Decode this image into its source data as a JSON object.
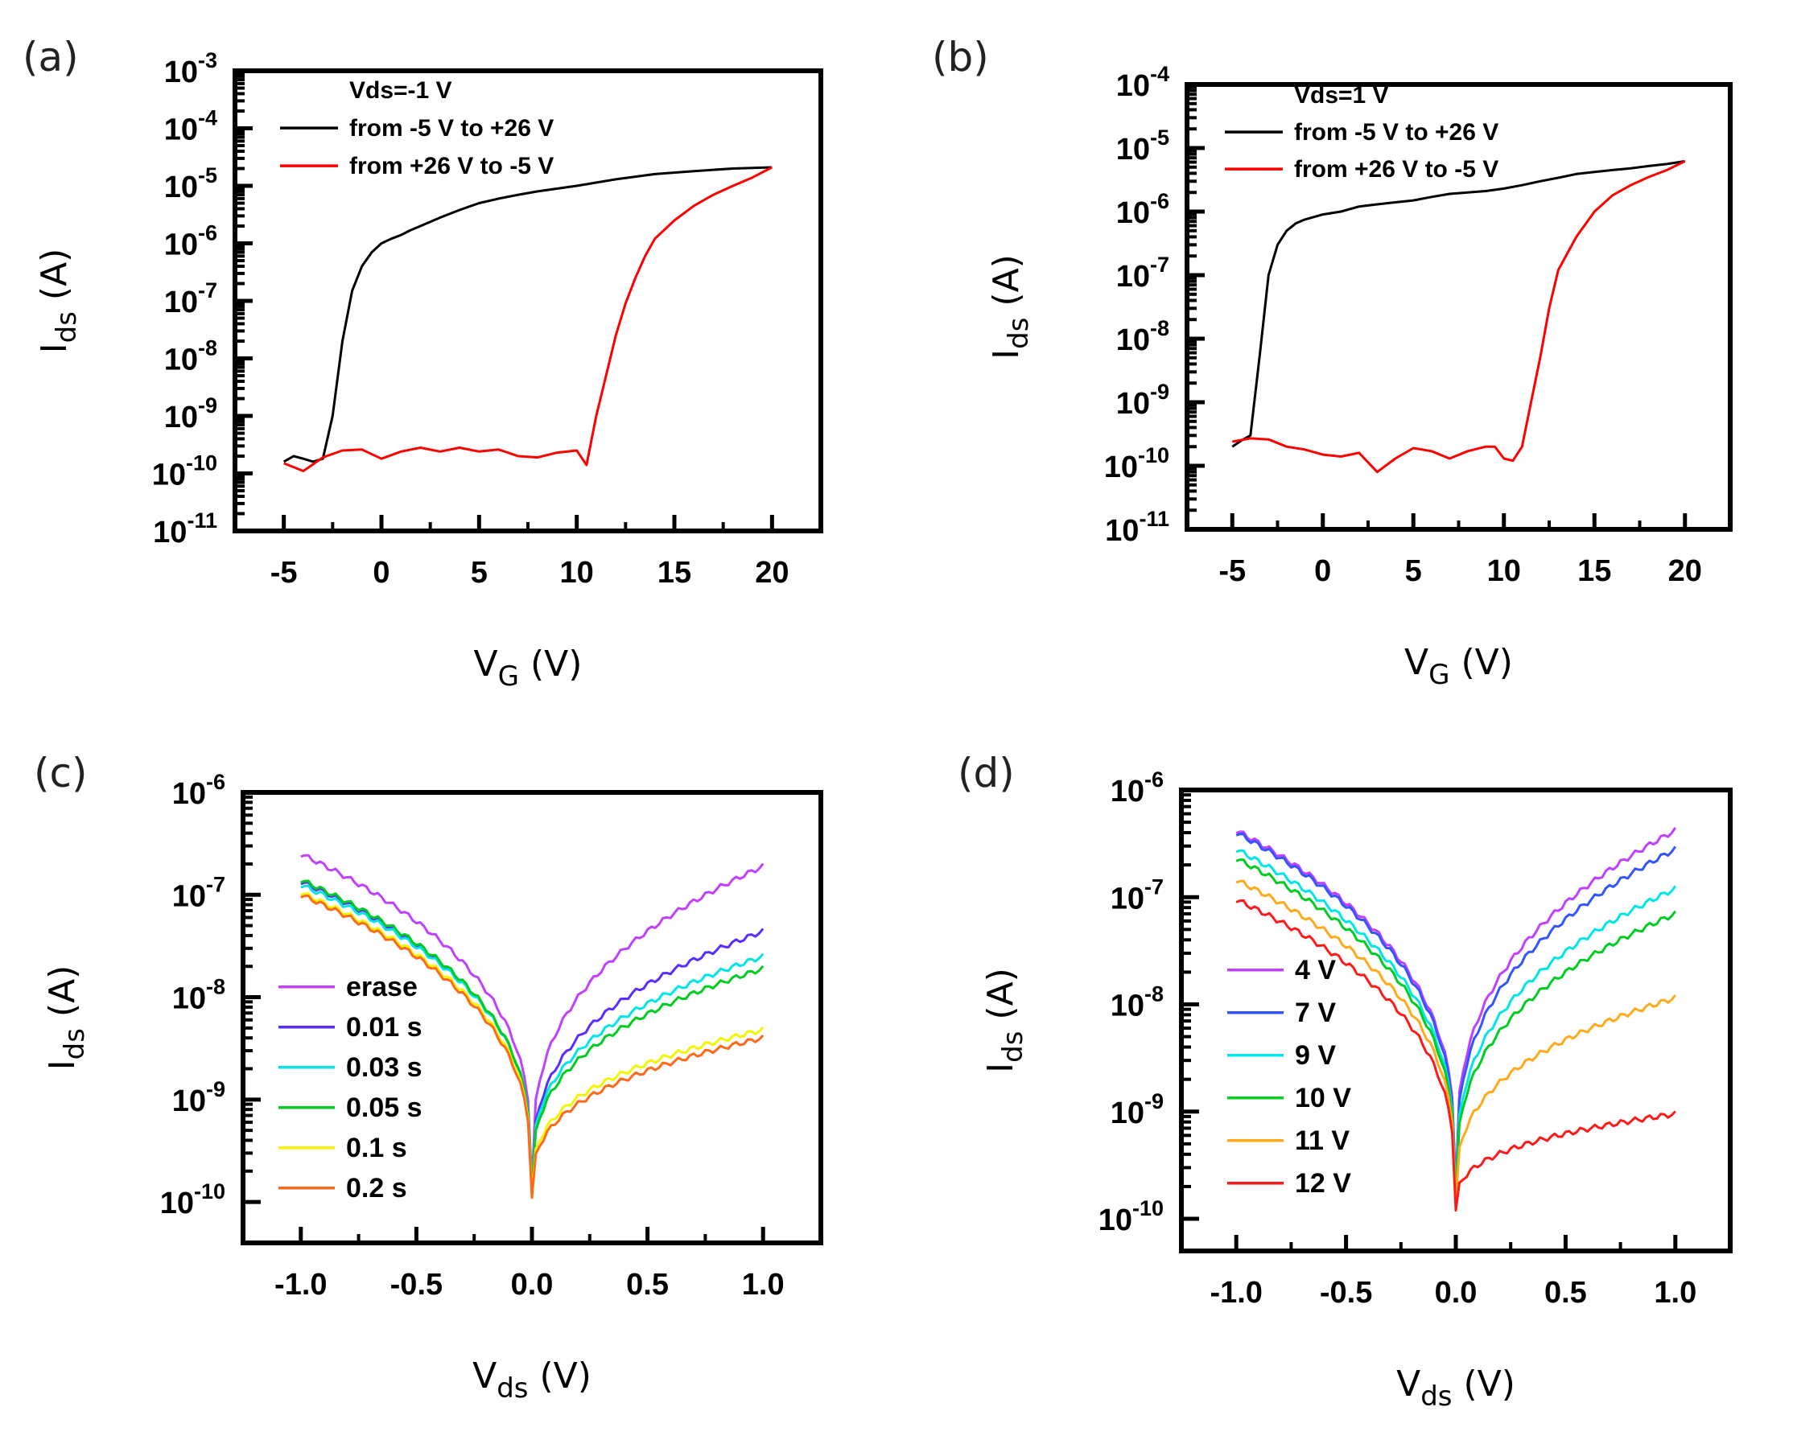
{
  "figure_labels": [
    "(a)",
    "(b)",
    "(c)",
    "(d)"
  ],
  "chart_data": [
    {
      "type": "line",
      "panel": "(a)",
      "annotation": "Vds=-1 V",
      "xlabel": "V",
      "xlabel_sub": "G",
      "xlabel_unit": " (V)",
      "ylabel": "I",
      "ylabel_sub": "ds",
      "ylabel_unit": " (A)",
      "xlim": [
        -7.5,
        22.5
      ],
      "xticks": [
        -5,
        0,
        5,
        10,
        15,
        20
      ],
      "y_scale": "log",
      "ylim_exp": [
        -11,
        -3
      ],
      "ytick_exps": [
        -11,
        -10,
        -9,
        -8,
        -7,
        -6,
        -5,
        -4,
        -3
      ],
      "legend_position": "top-left",
      "series": [
        {
          "name": "from -5 V to +26 V",
          "color": "#000000",
          "x": [
            -5,
            -4.5,
            -4,
            -3.5,
            -3,
            -2.5,
            -2,
            -1.5,
            -1,
            -0.5,
            0,
            0.5,
            1,
            1.5,
            2,
            3,
            4,
            5,
            6,
            7,
            8,
            10,
            12,
            14,
            16,
            18,
            20
          ],
          "y": [
            1.6e-10,
            2e-10,
            1.8e-10,
            1.6e-10,
            1.8e-10,
            1e-09,
            2e-08,
            1.5e-07,
            4e-07,
            7e-07,
            1e-06,
            1.2e-06,
            1.4e-06,
            1.7e-06,
            2e-06,
            2.8e-06,
            3.8e-06,
            5e-06,
            6e-06,
            7e-06,
            8e-06,
            1e-05,
            1.3e-05,
            1.6e-05,
            1.8e-05,
            2e-05,
            2.1e-05
          ]
        },
        {
          "name": "from +26 V to -5 V",
          "color": "#ff0000",
          "x": [
            20,
            19,
            18,
            17,
            16,
            15,
            14,
            13.5,
            13,
            12.5,
            12,
            11.5,
            11,
            10.5,
            10,
            9,
            8,
            7,
            6,
            5,
            4,
            3,
            2,
            1,
            0,
            -1,
            -2,
            -3,
            -4,
            -5
          ],
          "y": [
            2.1e-05,
            1.4e-05,
            1e-05,
            7e-06,
            4.5e-06,
            2.5e-06,
            1.2e-06,
            6e-07,
            2.5e-07,
            9e-08,
            2.5e-08,
            5e-09,
            1e-09,
            1.4e-10,
            2.5e-10,
            2.3e-10,
            1.9e-10,
            2e-10,
            2.6e-10,
            2.4e-10,
            2.8e-10,
            2.4e-10,
            2.8e-10,
            2.4e-10,
            1.8e-10,
            2.6e-10,
            2.5e-10,
            1.9e-10,
            1.1e-10,
            1.5e-10
          ]
        }
      ]
    },
    {
      "type": "line",
      "panel": "(b)",
      "annotation": "Vds=1 V",
      "xlabel": "V",
      "xlabel_sub": "G",
      "xlabel_unit": " (V)",
      "ylabel": "I",
      "ylabel_sub": "ds",
      "ylabel_unit": " (A)",
      "xlim": [
        -7.5,
        22.5
      ],
      "xticks": [
        -5,
        0,
        5,
        10,
        15,
        20
      ],
      "y_scale": "log",
      "ylim_exp": [
        -11,
        -4
      ],
      "ytick_exps": [
        -11,
        -10,
        -9,
        -8,
        -7,
        -6,
        -5,
        -4
      ],
      "legend_position": "top-left",
      "series": [
        {
          "name": "from -5 V to +26 V",
          "color": "#000000",
          "x": [
            -5,
            -4.5,
            -4,
            -3.5,
            -3,
            -2.5,
            -2,
            -1.5,
            -1,
            0,
            1,
            2,
            3,
            4,
            5,
            6,
            7,
            8,
            9,
            10,
            11,
            12,
            13,
            14,
            15,
            16,
            17,
            18,
            19,
            20
          ],
          "y": [
            2e-10,
            2.5e-10,
            3e-10,
            5e-09,
            1e-07,
            3e-07,
            5e-07,
            6.5e-07,
            7.5e-07,
            9e-07,
            1e-06,
            1.2e-06,
            1.3e-06,
            1.4e-06,
            1.5e-06,
            1.7e-06,
            1.9e-06,
            2e-06,
            2.1e-06,
            2.3e-06,
            2.6e-06,
            3e-06,
            3.4e-06,
            3.9e-06,
            4.2e-06,
            4.5e-06,
            4.8e-06,
            5.2e-06,
            5.6e-06,
            6.2e-06
          ]
        },
        {
          "name": "from +26 V to -5 V",
          "color": "#ff0000",
          "x": [
            20,
            19,
            18,
            17,
            16,
            15,
            14,
            13,
            12.5,
            12,
            11.5,
            11,
            10.5,
            10,
            9.5,
            9,
            8,
            7,
            6,
            5,
            4,
            3,
            2,
            1,
            0,
            -1,
            -2,
            -3,
            -4,
            -5
          ],
          "y": [
            6.2e-06,
            4.5e-06,
            3.5e-06,
            2.6e-06,
            1.8e-06,
            1e-06,
            4e-07,
            1.2e-07,
            3e-08,
            5e-09,
            1e-09,
            2e-10,
            1.2e-10,
            1.3e-10,
            2e-10,
            2e-10,
            1.7e-10,
            1.3e-10,
            1.7e-10,
            1.9e-10,
            1.3e-10,
            8e-11,
            1.6e-10,
            1.4e-10,
            1.5e-10,
            1.8e-10,
            2e-10,
            2.6e-10,
            2.7e-10,
            2.4e-10
          ]
        }
      ]
    },
    {
      "type": "line",
      "panel": "(c)",
      "xlabel": "V",
      "xlabel_sub": "ds",
      "xlabel_unit": " (V)",
      "ylabel": "I",
      "ylabel_sub": "ds",
      "ylabel_unit": " (A)",
      "xlim": [
        -1.25,
        1.25
      ],
      "xticks": [
        -1.0,
        -0.5,
        0.0,
        0.5,
        1.0
      ],
      "y_scale": "log",
      "ylim_exp": [
        -10.4,
        -6
      ],
      "ytick_exps": [
        -10,
        -9,
        -8,
        -7,
        -6
      ],
      "legend_position": "bottom-left",
      "series": [
        {
          "name": "erase",
          "color": "#bf40ff",
          "neg_end": 2.5e-07,
          "pos_end": 1.9e-07,
          "min": 1.5e-10
        },
        {
          "name": "0.01 s",
          "color": "#5a2cff",
          "neg_end": 1.35e-07,
          "pos_end": 4.4e-08,
          "min": 1.3e-10
        },
        {
          "name": "0.03 s",
          "color": "#00e6e6",
          "neg_end": 1.25e-07,
          "pos_end": 2.5e-08,
          "min": 1.4e-10
        },
        {
          "name": "0.05 s",
          "color": "#00cc22",
          "neg_end": 1.4e-07,
          "pos_end": 1.9e-08,
          "min": 1.3e-10
        },
        {
          "name": "0.1 s",
          "color": "#f5f500",
          "neg_end": 1.05e-07,
          "pos_end": 4.8e-09,
          "min": 1.2e-10
        },
        {
          "name": "0.2 s",
          "color": "#ff6a1a",
          "neg_end": 1e-07,
          "pos_end": 4e-09,
          "min": 1.1e-10
        }
      ]
    },
    {
      "type": "line",
      "panel": "(d)",
      "xlabel": "V",
      "xlabel_sub": "ds",
      "xlabel_unit": " (V)",
      "ylabel": "I",
      "ylabel_sub": "ds",
      "ylabel_unit": " (A)",
      "xlim": [
        -1.25,
        1.25
      ],
      "xticks": [
        -1.0,
        -0.5,
        0.0,
        0.5,
        1.0
      ],
      "y_scale": "log",
      "ylim_exp": [
        -10.3,
        -6
      ],
      "ytick_exps": [
        -10,
        -9,
        -8,
        -7,
        -6
      ],
      "legend_position": "bottom-left",
      "series": [
        {
          "name": "4 V",
          "color": "#bf40ff",
          "neg_end": 4.2e-07,
          "pos_end": 4.2e-07,
          "min": 2e-10
        },
        {
          "name": "7 V",
          "color": "#3355ff",
          "neg_end": 4e-07,
          "pos_end": 2.8e-07,
          "min": 1.8e-10
        },
        {
          "name": "9 V",
          "color": "#00e6e6",
          "neg_end": 2.8e-07,
          "pos_end": 1.2e-07,
          "min": 1.6e-10
        },
        {
          "name": "10 V",
          "color": "#00cc22",
          "neg_end": 2.3e-07,
          "pos_end": 7e-08,
          "min": 1.5e-10
        },
        {
          "name": "11 V",
          "color": "#ffaa1a",
          "neg_end": 1.45e-07,
          "pos_end": 1.15e-08,
          "min": 1.4e-10
        },
        {
          "name": "12 V",
          "color": "#ff1a1a",
          "neg_end": 9.5e-08,
          "pos_end": 9.5e-10,
          "min": 1.2e-10
        }
      ]
    }
  ]
}
